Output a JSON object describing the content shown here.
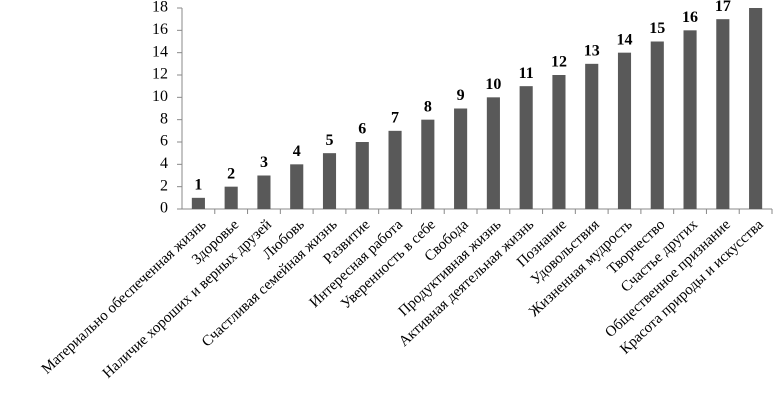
{
  "chart_data": {
    "type": "bar",
    "categories": [
      "Материально обеспеченная жизнь",
      "Здоровье",
      "Наличие хороших и верных друзей",
      "Любовь",
      "Счастливая семейная жизнь",
      "Развитие",
      "Интересная работа",
      "Уверенность в себе",
      "Свобода",
      "Продуктивная жизнь",
      "Активная деятельная жизнь",
      "Познание",
      "Удовольствия",
      "Жизненная мудрость",
      "Творчество",
      "Счастье других",
      "Общественное признание",
      "Красота природы и искусства"
    ],
    "values": [
      1,
      2,
      3,
      4,
      5,
      6,
      7,
      8,
      9,
      10,
      11,
      12,
      13,
      14,
      15,
      16,
      17,
      18
    ],
    "color": "#595959",
    "ylim": [
      0,
      18
    ],
    "yticks": [
      0,
      2,
      4,
      6,
      8,
      10,
      12,
      14,
      16,
      18
    ],
    "grid": false
  }
}
